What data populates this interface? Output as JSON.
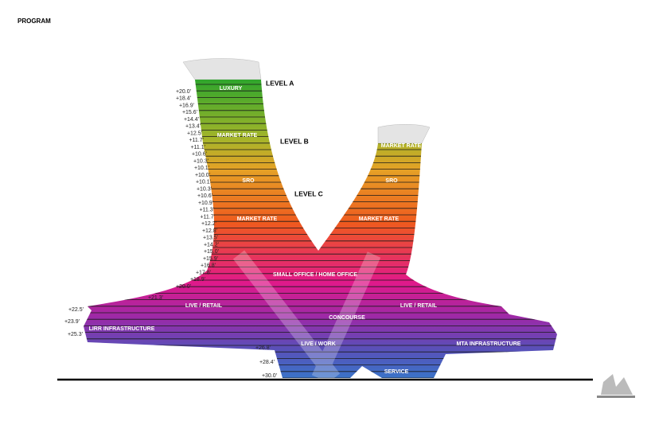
{
  "title": "PROGRAM",
  "levels": [
    "LEVEL A",
    "LEVEL B",
    "LEVEL C"
  ],
  "zones": [
    "LUXURY",
    "MARKET RATE",
    "SRO",
    "MARKET RATE",
    "MARKET RATE",
    "SRO",
    "MARKET RATE",
    "SMALL OFFICE / HOME OFFICE",
    "LIVE / RETAIL",
    "LIVE / RETAIL",
    "CONCOURSE",
    "LIRR INFRASTRUCTURE",
    "LIVE / WORK",
    "MTA INFRASTRUCTURE",
    "SERVICE"
  ],
  "elevations": [
    "+20.0'",
    "+18.4'",
    "+16.9'",
    "+15.6'",
    "+14.4'",
    "+13.4'",
    "+12.5'",
    "+11.7'",
    "+11.1'",
    "+10.6'",
    "+10.3'",
    "+10.1'",
    "+10.0'",
    "+10.1'",
    "+10.3'",
    "+10.6'",
    "+10.9'",
    "+11.3'",
    "+11.7'",
    "+12.2'",
    "+12.8'",
    "+13.5'",
    "+14.2'",
    "+15.0'",
    "+15.9'",
    "+16.8'",
    "+17.8'",
    "+18.9'",
    "+20.0'",
    "+21.3'",
    "+22.5'",
    "+23.9'",
    "+25.3'",
    "+26.8'",
    "+28.4'",
    "+30.0'"
  ]
}
